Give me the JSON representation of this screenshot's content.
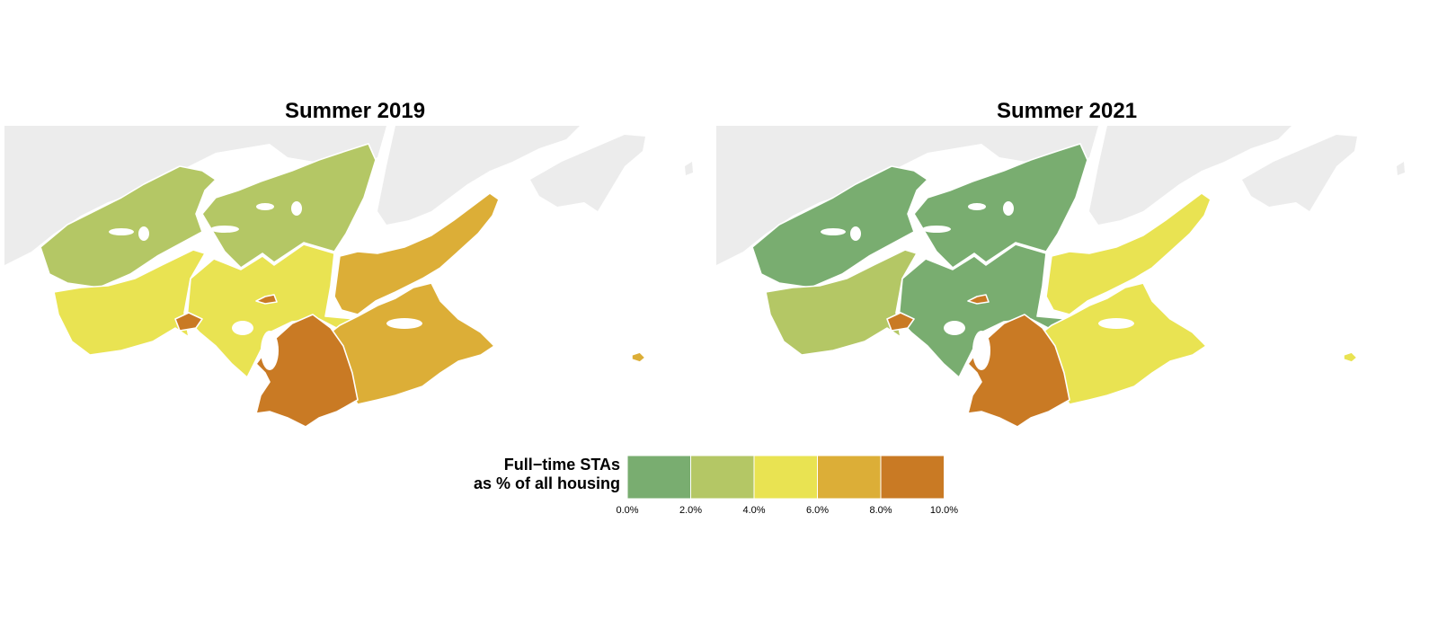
{
  "maps": [
    {
      "title": "Summer 2019",
      "regions": [
        {
          "id": "north-west",
          "value": 3.0
        },
        {
          "id": "north-central",
          "value": 3.0
        },
        {
          "id": "west-shore",
          "value": 4.8
        },
        {
          "id": "central",
          "value": 4.9
        },
        {
          "id": "east-mainland",
          "value": 7.2
        },
        {
          "id": "east-peninsula",
          "value": 7.3
        },
        {
          "id": "south",
          "value": 9.2
        },
        {
          "id": "west-enclave",
          "value": 9.0
        },
        {
          "id": "center-enclave",
          "value": 9.0
        },
        {
          "id": "small-island",
          "value": 7.5
        }
      ]
    },
    {
      "title": "Summer 2021",
      "regions": [
        {
          "id": "north-west",
          "value": 1.0
        },
        {
          "id": "north-central",
          "value": 1.0
        },
        {
          "id": "west-shore",
          "value": 3.0
        },
        {
          "id": "central",
          "value": 1.0
        },
        {
          "id": "east-mainland",
          "value": 5.0
        },
        {
          "id": "east-peninsula",
          "value": 5.0
        },
        {
          "id": "south",
          "value": 9.2
        },
        {
          "id": "west-enclave",
          "value": 9.0
        },
        {
          "id": "center-enclave",
          "value": 9.0
        },
        {
          "id": "small-island",
          "value": 5.0
        }
      ]
    }
  ],
  "legend": {
    "title_line1": "Full−time STAs",
    "title_line2": "as % of all housing",
    "breaks": [
      0,
      2,
      4,
      6,
      8,
      10
    ],
    "labels": [
      "0.0%",
      "2.0%",
      "4.0%",
      "6.0%",
      "8.0%",
      "10.0%"
    ],
    "colors": [
      "#79ad70",
      "#b4c765",
      "#e9e352",
      "#dcae37",
      "#c97a24"
    ]
  },
  "colors": {
    "background_land": "#ececec",
    "border": "#ffffff"
  }
}
